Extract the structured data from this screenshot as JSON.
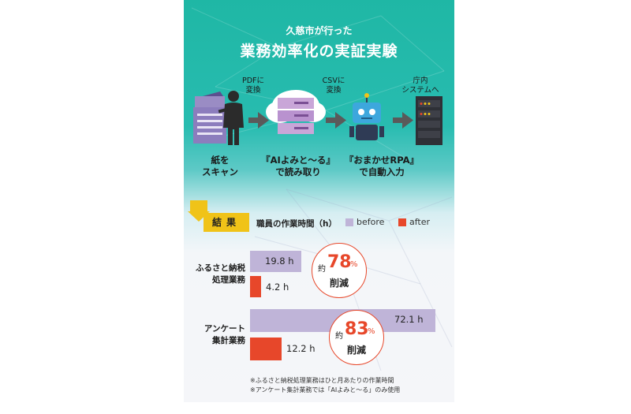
{
  "header": {
    "subtitle": "久慈市が行った",
    "title": "業務効率化の実証実験"
  },
  "flow": {
    "arrow1": [
      "PDFに",
      "変換"
    ],
    "arrow2": [
      "CSVに",
      "変換"
    ],
    "arrow3": [
      "庁内",
      "システムへ"
    ],
    "captions": [
      [
        "紙を",
        "スキャン"
      ],
      [
        "『AIよみと～る』",
        "で読み取り"
      ],
      [
        "『おまかせRPA』",
        "で自動入力"
      ]
    ]
  },
  "result_label": "結果",
  "colors": {
    "before": "#bfb4d8",
    "after": "#e7472a",
    "accent": "#f0c318",
    "teal": "#1fb7a5"
  },
  "chart_data": {
    "type": "bar",
    "orientation": "horizontal",
    "title": "職員の作業時間（h）",
    "categories": [
      [
        "ふるさと納税",
        "処理業務"
      ],
      [
        "アンケート",
        "集計業務"
      ]
    ],
    "series": [
      {
        "name": "before",
        "values": [
          19.8,
          72.1
        ],
        "labels": [
          "19.8 h",
          "72.1 h"
        ]
      },
      {
        "name": "after",
        "values": [
          4.2,
          12.2
        ],
        "labels": [
          "4.2 h",
          "12.2 h"
        ]
      }
    ],
    "xlim": [
      0,
      72.1
    ],
    "annotations": [
      {
        "prefix": "約",
        "value": "78",
        "unit": "%",
        "text": "削減"
      },
      {
        "prefix": "約",
        "value": "83",
        "unit": "%",
        "text": "削減"
      }
    ]
  },
  "notes": [
    "※ふるさと納税処理業務はひと月あたりの作業時間",
    "※アンケート集計業務では「AIよみと～る」のみ使用"
  ]
}
